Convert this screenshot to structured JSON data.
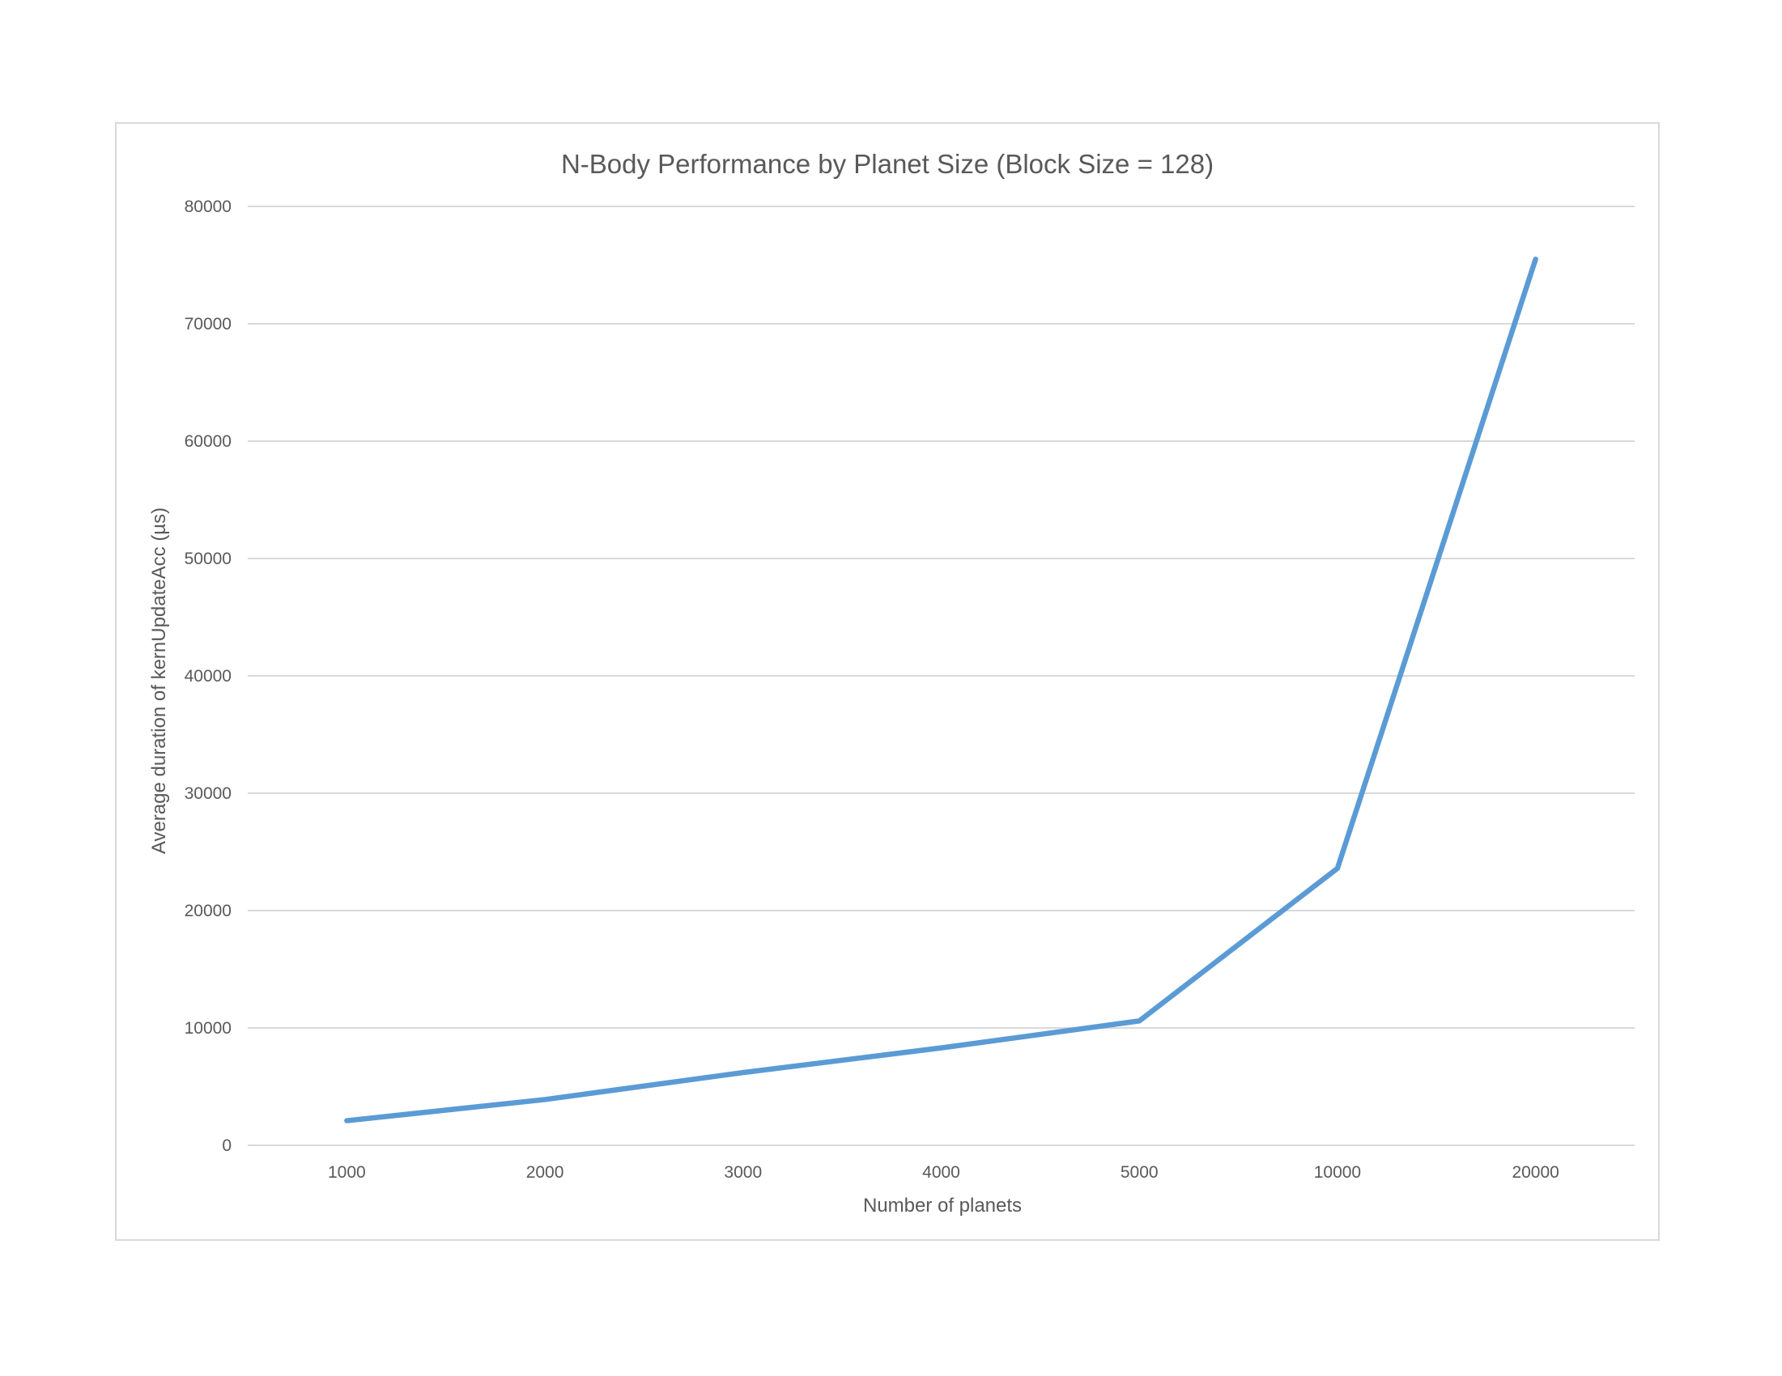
{
  "chart_data": {
    "type": "line",
    "title": "N-Body Performance by Planet Size (Block Size = 128)",
    "xlabel": "Number of planets",
    "ylabel": "Average duration of kernUpdateAcc (µs)",
    "categories": [
      "1000",
      "2000",
      "3000",
      "4000",
      "5000",
      "10000",
      "20000"
    ],
    "series": [
      {
        "values": [
          2100,
          3900,
          6200,
          8300,
          10600,
          23600,
          75500
        ]
      }
    ],
    "ylim": [
      0,
      80000
    ],
    "yticks": [
      "0",
      "10000",
      "20000",
      "30000",
      "40000",
      "50000",
      "60000",
      "70000",
      "80000"
    ],
    "grid": true,
    "legend": "none",
    "colors": {
      "series": "#5b9bd5",
      "grid": "#d9d9d9",
      "text": "#595959"
    }
  }
}
